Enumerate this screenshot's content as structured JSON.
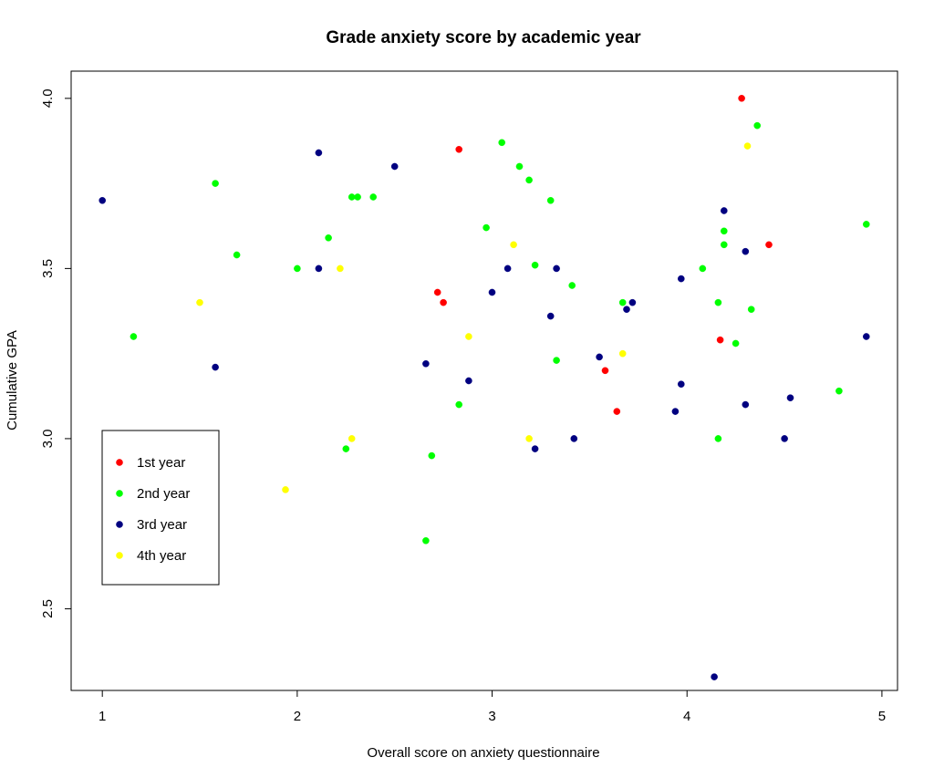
{
  "chart_data": {
    "type": "scatter",
    "title": "Grade anxiety score by academic year",
    "xlabel": "Overall score on anxiety questionnaire",
    "ylabel": "Cumulative GPA",
    "xlim": [
      0.84,
      5.08
    ],
    "ylim": [
      2.26,
      4.08
    ],
    "xticks": [
      1,
      2,
      3,
      4,
      5
    ],
    "xtick_labels": [
      "1",
      "2",
      "3",
      "4",
      "5"
    ],
    "yticks": [
      2.5,
      3.0,
      3.5,
      4.0
    ],
    "ytick_labels": [
      "2.5",
      "3.0",
      "3.5",
      "4.0"
    ],
    "grid": false,
    "legend_position": "bottom-left",
    "series": [
      {
        "name": "1st year",
        "color": "#ff0000",
        "points": [
          [
            2.83,
            3.85
          ],
          [
            2.72,
            3.43
          ],
          [
            2.75,
            3.4
          ],
          [
            3.58,
            3.2
          ],
          [
            3.64,
            3.08
          ],
          [
            4.28,
            4.0
          ],
          [
            4.17,
            3.29
          ],
          [
            4.42,
            3.57
          ]
        ]
      },
      {
        "name": "2nd year",
        "color": "#00ff00",
        "points": [
          [
            1.16,
            3.3
          ],
          [
            1.58,
            3.75
          ],
          [
            1.69,
            3.54
          ],
          [
            2.0,
            3.5
          ],
          [
            2.16,
            3.59
          ],
          [
            2.28,
            3.71
          ],
          [
            2.31,
            3.71
          ],
          [
            2.39,
            3.71
          ],
          [
            2.25,
            2.97
          ],
          [
            2.66,
            2.7
          ],
          [
            2.69,
            2.95
          ],
          [
            2.83,
            3.1
          ],
          [
            2.97,
            3.62
          ],
          [
            3.05,
            3.87
          ],
          [
            3.14,
            3.8
          ],
          [
            3.19,
            3.76
          ],
          [
            3.22,
            3.51
          ],
          [
            3.3,
            3.7
          ],
          [
            3.33,
            3.23
          ],
          [
            3.41,
            3.45
          ],
          [
            3.67,
            3.4
          ],
          [
            4.08,
            3.5
          ],
          [
            4.16,
            3.4
          ],
          [
            4.19,
            3.61
          ],
          [
            4.19,
            3.57
          ],
          [
            4.16,
            3.0
          ],
          [
            4.25,
            3.28
          ],
          [
            4.33,
            3.38
          ],
          [
            4.36,
            3.92
          ],
          [
            4.78,
            3.14
          ],
          [
            4.92,
            3.63
          ]
        ]
      },
      {
        "name": "3rd year",
        "color": "#000080",
        "points": [
          [
            1.0,
            3.7
          ],
          [
            1.58,
            3.21
          ],
          [
            2.11,
            3.84
          ],
          [
            2.11,
            3.5
          ],
          [
            2.5,
            3.8
          ],
          [
            2.66,
            3.22
          ],
          [
            2.88,
            3.17
          ],
          [
            3.0,
            3.43
          ],
          [
            3.08,
            3.5
          ],
          [
            3.22,
            2.97
          ],
          [
            3.3,
            3.36
          ],
          [
            3.33,
            3.5
          ],
          [
            3.42,
            3.0
          ],
          [
            3.55,
            3.24
          ],
          [
            3.69,
            3.38
          ],
          [
            3.72,
            3.4
          ],
          [
            3.94,
            3.08
          ],
          [
            3.97,
            3.47
          ],
          [
            3.97,
            3.16
          ],
          [
            4.14,
            2.3
          ],
          [
            4.19,
            3.67
          ],
          [
            4.3,
            3.55
          ],
          [
            4.3,
            3.1
          ],
          [
            4.5,
            3.0
          ],
          [
            4.53,
            3.12
          ],
          [
            4.92,
            3.3
          ]
        ]
      },
      {
        "name": "4th year",
        "color": "#ffff00",
        "points": [
          [
            1.5,
            3.4
          ],
          [
            1.94,
            2.85
          ],
          [
            2.22,
            3.5
          ],
          [
            2.28,
            3.0
          ],
          [
            2.88,
            3.3
          ],
          [
            3.11,
            3.57
          ],
          [
            3.19,
            3.0
          ],
          [
            3.67,
            3.25
          ],
          [
            4.31,
            3.86
          ]
        ]
      }
    ]
  }
}
